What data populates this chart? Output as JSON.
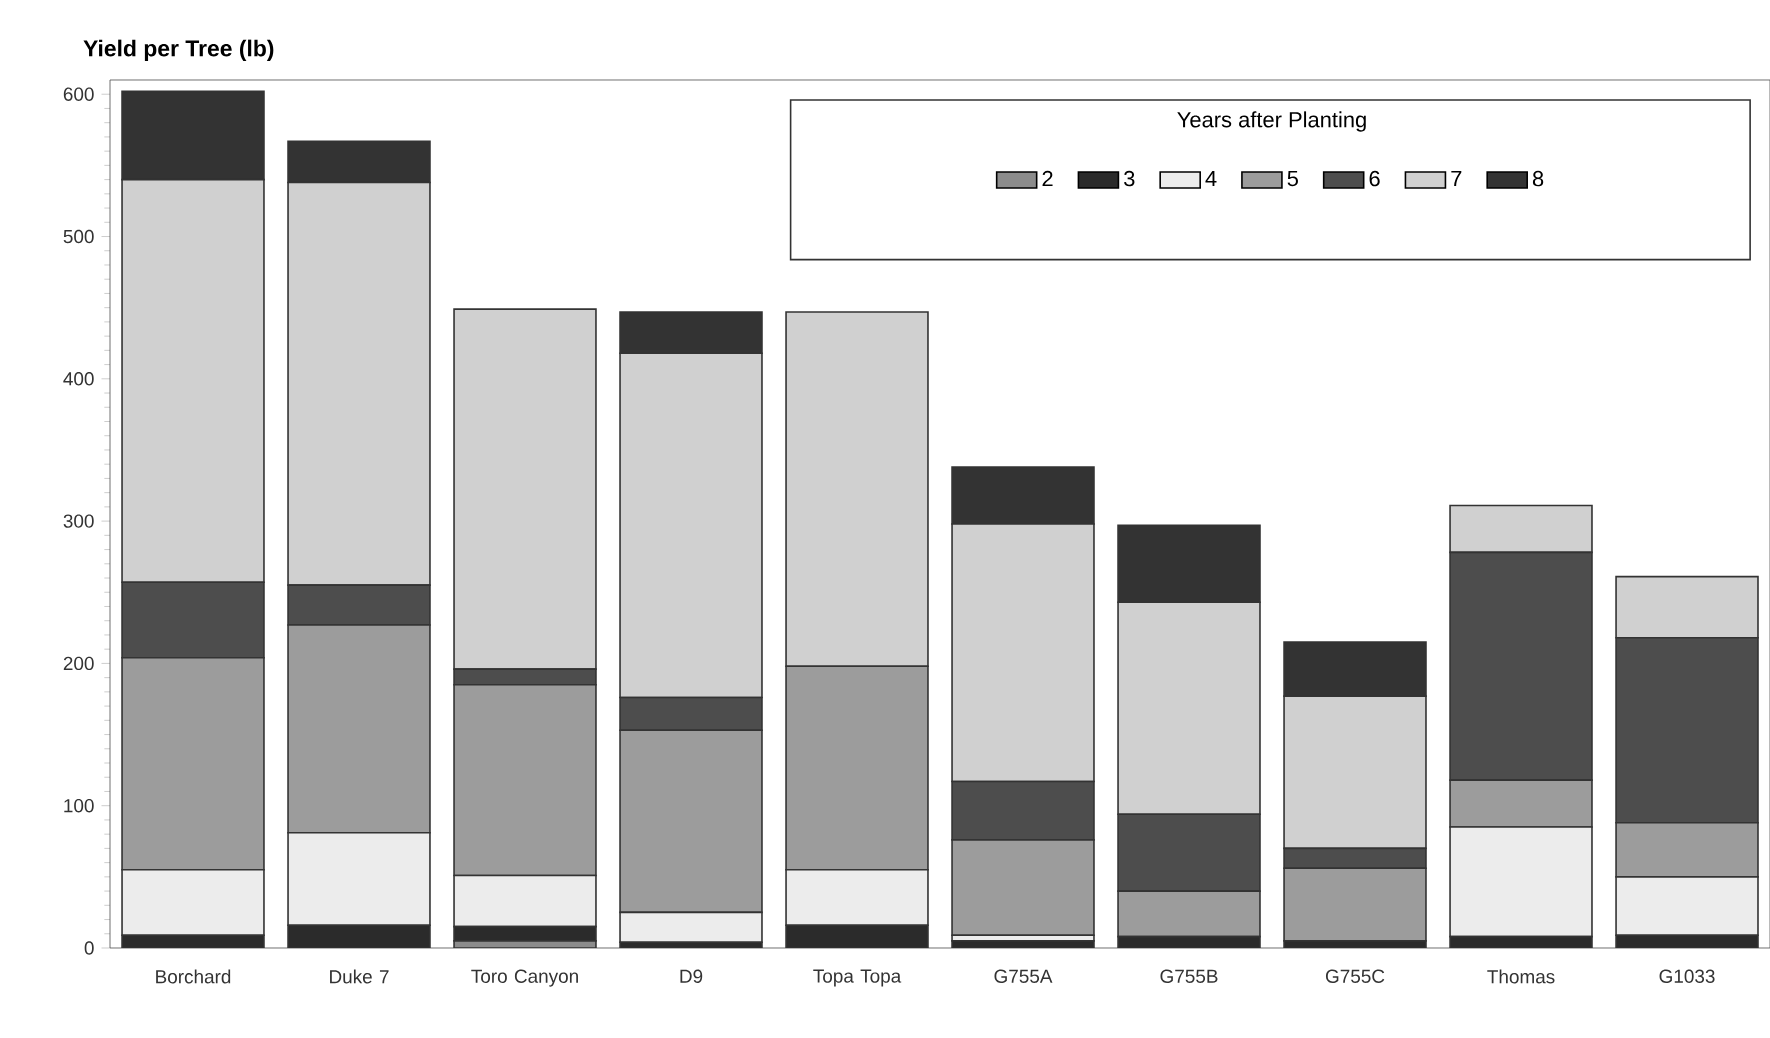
{
  "chart_data": {
    "type": "bar",
    "stacked": true,
    "title": "Yield per Tree (lb)",
    "legend_title": "Years after Planting",
    "legend": "top right",
    "categories": [
      "Borchard",
      "Duke 7",
      "Toro Canyon",
      "D9",
      "Topa Topa",
      "G755A",
      "G755B",
      "G755C",
      "Thomas",
      "G1033"
    ],
    "series": [
      {
        "name": "2",
        "color": "#8c8c8c",
        "values": [
          0,
          0,
          5,
          0,
          0,
          0,
          0,
          0,
          0,
          0
        ]
      },
      {
        "name": "3",
        "color": "#2b2b2b",
        "values": [
          9,
          16,
          10,
          4,
          16,
          5,
          8,
          5,
          8,
          9
        ]
      },
      {
        "name": "4",
        "color": "#ececec",
        "values": [
          46,
          65,
          36,
          21,
          39,
          4,
          0,
          0,
          77,
          41
        ]
      },
      {
        "name": "5",
        "color": "#9c9c9c",
        "values": [
          149,
          146,
          134,
          128,
          143,
          67,
          32,
          51,
          33,
          38
        ]
      },
      {
        "name": "6",
        "color": "#4d4d4d",
        "values": [
          53,
          28,
          11,
          23,
          0,
          41,
          54,
          14,
          160,
          130
        ]
      },
      {
        "name": "7",
        "color": "#d0d0d0",
        "values": [
          283,
          283,
          253,
          242,
          249,
          181,
          149,
          107,
          33,
          43
        ]
      },
      {
        "name": "8",
        "color": "#333333",
        "values": [
          62,
          29,
          0,
          29,
          0,
          40,
          54,
          38,
          0,
          0
        ]
      }
    ],
    "ylim": [
      0,
      610
    ],
    "yticks": [
      0,
      100,
      200,
      300,
      400,
      500,
      600
    ]
  }
}
